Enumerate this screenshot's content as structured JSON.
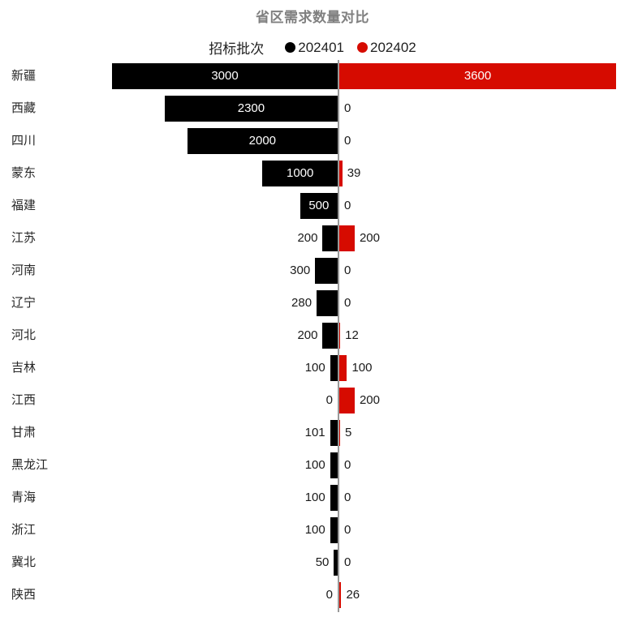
{
  "chart": {
    "title": "省区需求数量对比",
    "legend": {
      "title": "招标批次",
      "items": [
        {
          "label": "202401",
          "color": "#000000"
        },
        {
          "label": "202402",
          "color": "#d60b00"
        }
      ]
    }
  },
  "chart_data": {
    "type": "bar",
    "variant": "diverging-horizontal",
    "title": "省区需求数量对比",
    "legend_title": "招标批次",
    "legend_position": "top-center",
    "grid": "off",
    "value_labels": "on",
    "categories": [
      "新疆",
      "西藏",
      "四川",
      "蒙东",
      "福建",
      "江苏",
      "河南",
      "辽宁",
      "河北",
      "吉林",
      "江西",
      "甘肃",
      "黑龙江",
      "青海",
      "浙江",
      "冀北",
      "陕西"
    ],
    "series": [
      {
        "name": "202401",
        "color": "#000000",
        "direction": "left",
        "axis_max": 3000,
        "values": [
          3000,
          2300,
          2000,
          1000,
          500,
          200,
          300,
          280,
          200,
          100,
          0,
          101,
          100,
          100,
          100,
          50,
          0
        ]
      },
      {
        "name": "202402",
        "color": "#d60b00",
        "direction": "right",
        "axis_max": 3600,
        "values": [
          3600,
          0,
          0,
          39,
          0,
          200,
          0,
          0,
          12,
          100,
          200,
          5,
          0,
          0,
          0,
          0,
          26
        ]
      }
    ]
  },
  "colors": {
    "background": "#ffffff",
    "title_text": "#808080",
    "axis_line": "#999999",
    "category_text": "#262626",
    "outside_value_text": "#1a1a1a",
    "inside_value_text": "#ffffff"
  }
}
